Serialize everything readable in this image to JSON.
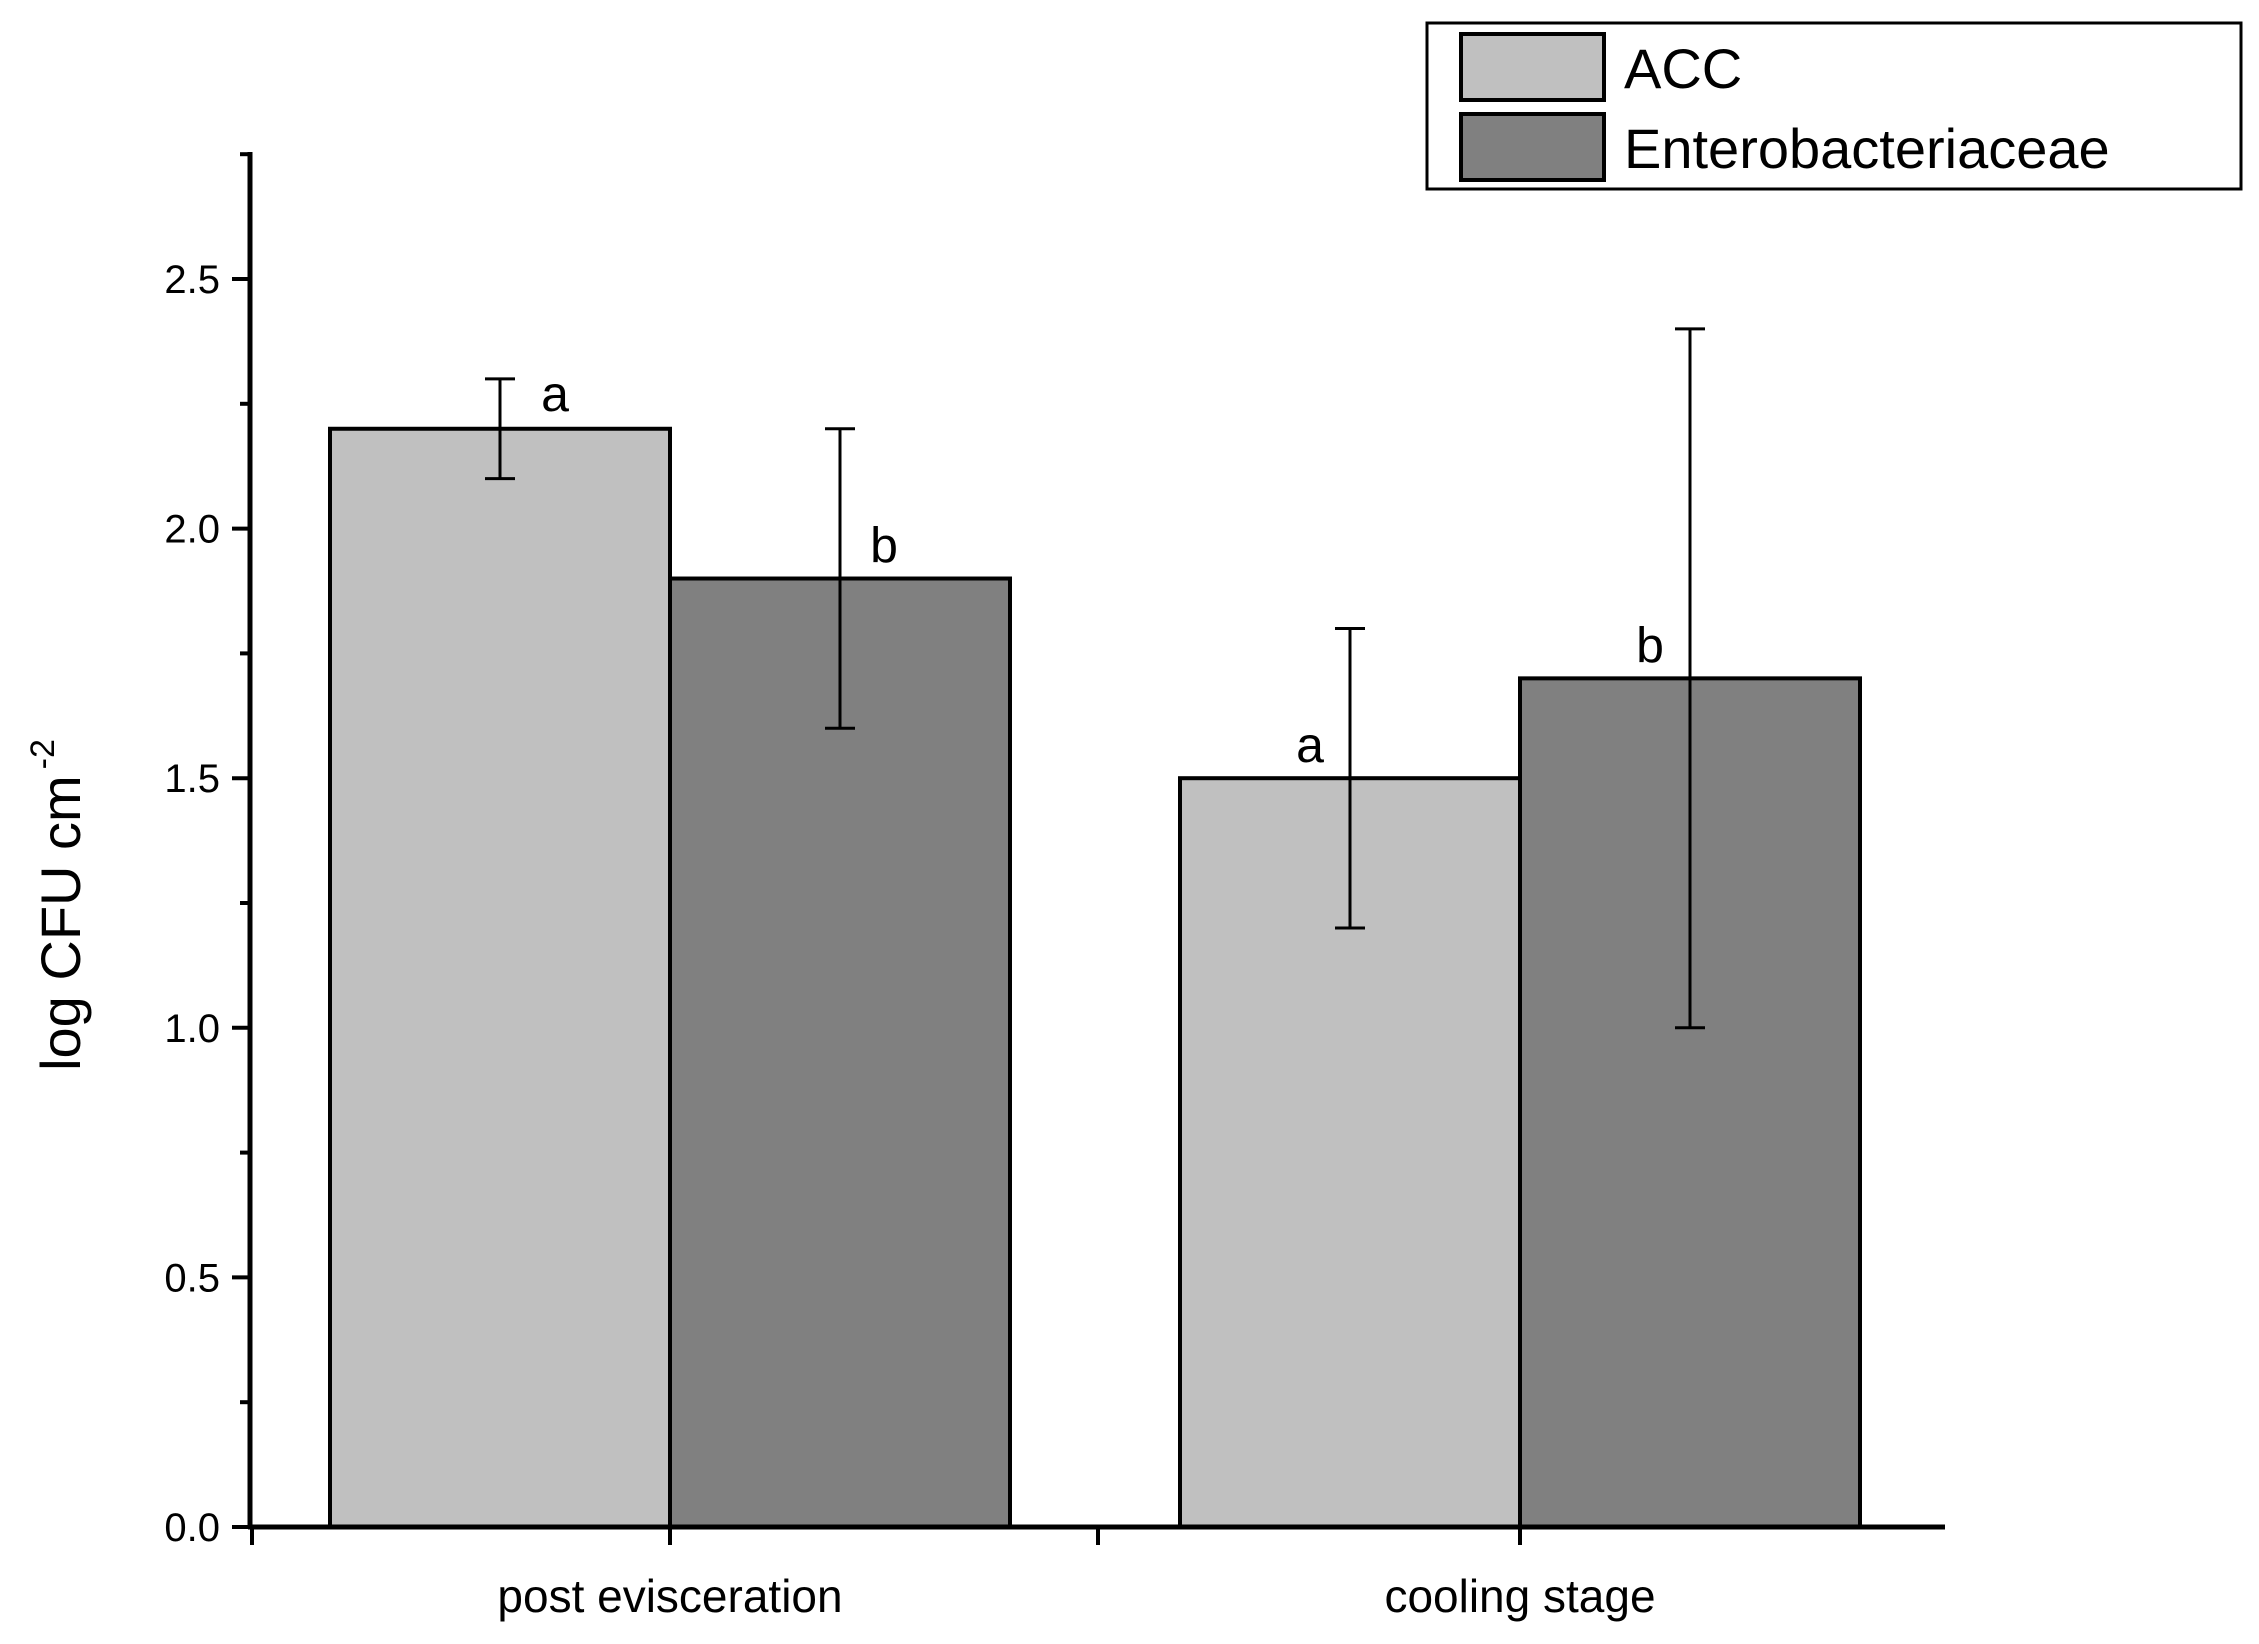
{
  "chart_data": {
    "type": "bar",
    "title": "",
    "xlabel": "",
    "ylabel": "log CFU cm",
    "ylabel_superscript": "-2",
    "ylim": [
      0,
      2.75
    ],
    "y_ticks": [
      "0.0",
      "0.5",
      "1.0",
      "1.5",
      "2.0",
      "2.5"
    ],
    "y_tick_values": [
      0,
      0.5,
      1.0,
      1.5,
      2.0,
      2.5
    ],
    "categories": [
      "post evisceration",
      "cooling stage"
    ],
    "series": [
      {
        "name": "ACC",
        "color": "#c0c0c0",
        "values": [
          2.2,
          1.5
        ],
        "errors": [
          0.1,
          0.3
        ],
        "labels": [
          "a",
          "a"
        ]
      },
      {
        "name": "Enterobacteriaceae",
        "color": "#808080",
        "values": [
          1.9,
          1.7
        ],
        "errors": [
          0.3,
          0.7
        ],
        "labels": [
          "b",
          "b"
        ]
      }
    ],
    "legend_position": "top-right",
    "grid": false
  }
}
